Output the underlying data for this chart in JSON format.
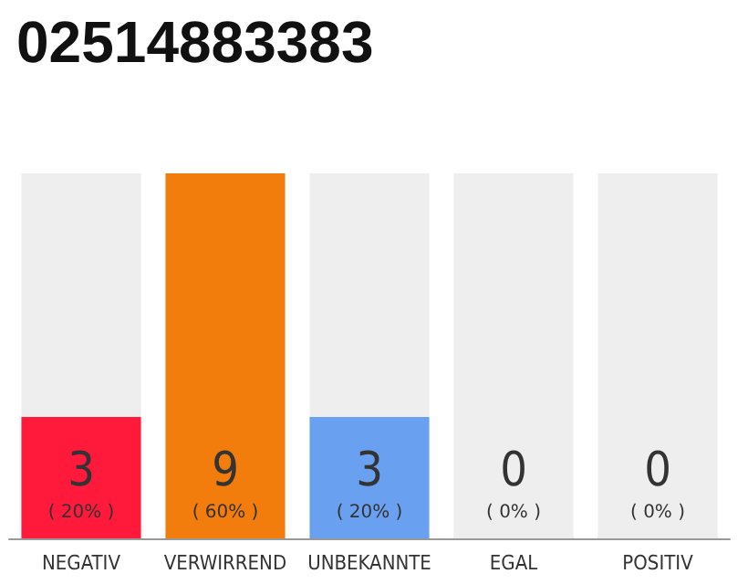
{
  "chart_data": {
    "type": "bar",
    "title": "02514883383",
    "stacked": true,
    "categories": [
      "NEGATIV",
      "VERWIRREND",
      "UNBEKANNTE",
      "EGAL",
      "POSITIV"
    ],
    "series": [
      {
        "values": [
          3,
          9,
          3,
          0,
          0
        ],
        "colors": [
          "#ff1a3c",
          "#f27d0c",
          "#6aa0f0",
          "#cccccc",
          "#cccccc"
        ],
        "value_labels": [
          "3\n( 20% )",
          "9\n( 60% )",
          "3\n( 20% )",
          "0\n( 0% )",
          "0\n( 0% )"
        ]
      },
      {
        "values": [
          6,
          0,
          6,
          9,
          9
        ],
        "color": "#eeeeee"
      }
    ],
    "grid": false,
    "legend": false
  }
}
